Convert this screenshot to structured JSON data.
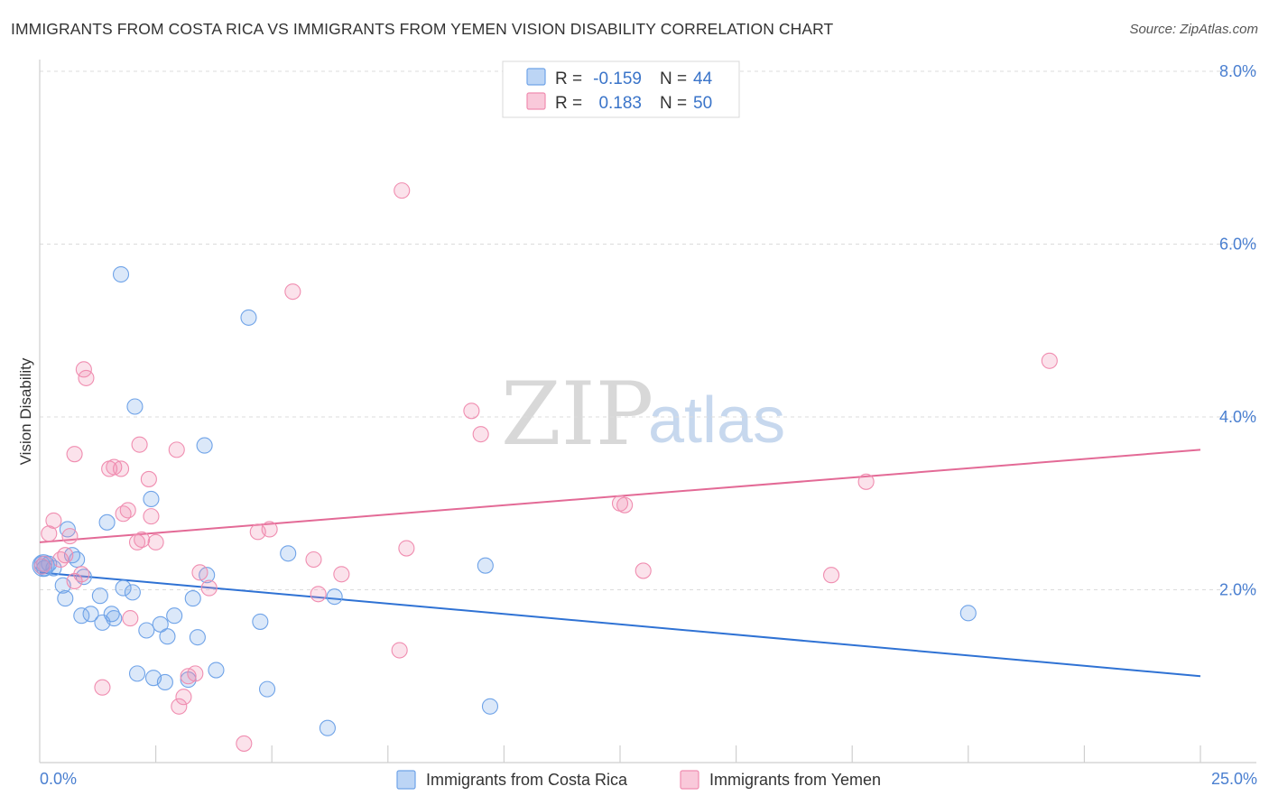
{
  "header": {
    "title": "IMMIGRANTS FROM COSTA RICA VS IMMIGRANTS FROM YEMEN VISION DISABILITY CORRELATION CHART",
    "source": "Source: ZipAtlas.com"
  },
  "watermark": {
    "part1": "ZIP",
    "part2": "atlas"
  },
  "legend": {
    "r_label": "R =",
    "n_label": "N =",
    "rows": [
      {
        "r": "-0.159",
        "n": "44",
        "color": "#6fa3e8"
      },
      {
        "r": "0.183",
        "n": "50",
        "color": "#f08db0"
      }
    ]
  },
  "chart_data": {
    "type": "scatter",
    "title": "IMMIGRANTS FROM COSTA RICA VS IMMIGRANTS FROM YEMEN VISION DISABILITY CORRELATION CHART",
    "xlabel": "",
    "ylabel": "Vision Disability",
    "xlim": [
      0,
      25
    ],
    "ylim": [
      0,
      8
    ],
    "x_tick_labels": [
      "0.0%",
      "25.0%"
    ],
    "y_ticks": [
      2,
      4,
      6,
      8
    ],
    "y_tick_labels": [
      "2.0%",
      "4.0%",
      "6.0%",
      "8.0%"
    ],
    "grid": true,
    "legend_position": "top-center",
    "series": [
      {
        "name": "Immigrants from Costa Rica",
        "color": "#6fa3e8",
        "points": [
          [
            0.05,
            2.3
          ],
          [
            0.2,
            2.3
          ],
          [
            0.3,
            2.25
          ],
          [
            0.5,
            2.05
          ],
          [
            0.55,
            1.9
          ],
          [
            0.6,
            2.7
          ],
          [
            0.7,
            2.4
          ],
          [
            0.8,
            2.35
          ],
          [
            0.9,
            1.7
          ],
          [
            0.95,
            2.15
          ],
          [
            1.1,
            1.72
          ],
          [
            1.3,
            1.93
          ],
          [
            1.35,
            1.62
          ],
          [
            1.45,
            2.78
          ],
          [
            1.55,
            1.72
          ],
          [
            1.6,
            1.67
          ],
          [
            1.75,
            5.65
          ],
          [
            1.8,
            2.02
          ],
          [
            2.0,
            1.97
          ],
          [
            2.05,
            4.12
          ],
          [
            2.1,
            1.03
          ],
          [
            2.3,
            1.53
          ],
          [
            2.4,
            3.05
          ],
          [
            2.45,
            0.98
          ],
          [
            2.6,
            1.6
          ],
          [
            2.7,
            0.93
          ],
          [
            2.75,
            1.46
          ],
          [
            2.9,
            1.7
          ],
          [
            3.2,
            0.96
          ],
          [
            3.3,
            1.9
          ],
          [
            3.4,
            1.45
          ],
          [
            3.55,
            3.67
          ],
          [
            3.6,
            2.17
          ],
          [
            3.8,
            1.07
          ],
          [
            4.5,
            5.15
          ],
          [
            4.75,
            1.63
          ],
          [
            4.9,
            0.85
          ],
          [
            5.35,
            2.42
          ],
          [
            6.2,
            0.4
          ],
          [
            6.35,
            1.92
          ],
          [
            9.6,
            2.28
          ],
          [
            9.7,
            0.65
          ],
          [
            20.0,
            1.73
          ],
          [
            0.1,
            2.25
          ]
        ]
      },
      {
        "name": "Immigrants from Yemen",
        "color": "#f08db0",
        "points": [
          [
            0.1,
            2.3
          ],
          [
            0.2,
            2.65
          ],
          [
            0.3,
            2.8
          ],
          [
            0.45,
            2.35
          ],
          [
            0.55,
            2.4
          ],
          [
            0.65,
            2.62
          ],
          [
            0.75,
            2.1
          ],
          [
            0.75,
            3.57
          ],
          [
            0.9,
            2.18
          ],
          [
            0.95,
            4.55
          ],
          [
            1.0,
            4.45
          ],
          [
            1.35,
            0.87
          ],
          [
            1.5,
            3.4
          ],
          [
            1.6,
            3.42
          ],
          [
            1.75,
            3.4
          ],
          [
            1.8,
            2.88
          ],
          [
            1.9,
            2.92
          ],
          [
            1.95,
            1.67
          ],
          [
            2.1,
            2.55
          ],
          [
            2.15,
            3.68
          ],
          [
            2.2,
            2.58
          ],
          [
            2.35,
            3.28
          ],
          [
            2.4,
            2.85
          ],
          [
            2.95,
            3.62
          ],
          [
            3.0,
            0.65
          ],
          [
            3.1,
            0.76
          ],
          [
            3.2,
            1.0
          ],
          [
            3.35,
            1.03
          ],
          [
            3.45,
            2.2
          ],
          [
            3.65,
            2.02
          ],
          [
            4.4,
            0.22
          ],
          [
            4.7,
            2.67
          ],
          [
            4.95,
            2.7
          ],
          [
            5.45,
            5.45
          ],
          [
            5.9,
            2.35
          ],
          [
            6.0,
            1.95
          ],
          [
            6.5,
            2.18
          ],
          [
            7.8,
            6.62
          ],
          [
            7.75,
            1.3
          ],
          [
            7.9,
            2.48
          ],
          [
            9.3,
            4.07
          ],
          [
            9.5,
            3.8
          ],
          [
            12.5,
            3.0
          ],
          [
            12.6,
            2.98
          ],
          [
            13.0,
            2.22
          ],
          [
            17.05,
            2.17
          ],
          [
            17.8,
            3.25
          ],
          [
            21.75,
            4.65
          ],
          [
            0.05,
            2.27
          ],
          [
            2.5,
            2.55
          ]
        ]
      }
    ],
    "trend_lines": [
      {
        "series": "Immigrants from Costa Rica",
        "x": [
          0,
          25
        ],
        "y": [
          2.2,
          1.0
        ]
      },
      {
        "series": "Immigrants from Yemen",
        "x": [
          0,
          25
        ],
        "y": [
          2.55,
          3.62
        ]
      }
    ]
  }
}
